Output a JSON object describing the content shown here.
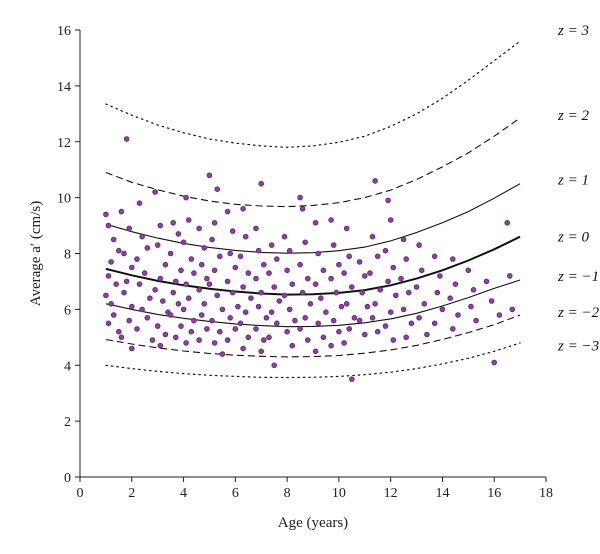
{
  "chart_data": {
    "type": "scatter",
    "title": "",
    "xlabel": "Age (years)",
    "ylabel": "Average a′ (cm/s)",
    "xlim": [
      0,
      18
    ],
    "ylim": [
      0,
      16
    ],
    "x_ticks": [
      "0",
      "2",
      "4",
      "6",
      "8",
      "10",
      "12",
      "14",
      "16",
      "18"
    ],
    "y_ticks": [
      "0",
      "2",
      "4",
      "6",
      "8",
      "10",
      "12",
      "14",
      "16"
    ],
    "grid": false,
    "point_color": "#5b2a6b",
    "point_fill": "#8e3fa3",
    "points": [
      [
        1.0,
        9.4
      ],
      [
        1.1,
        9.0
      ],
      [
        1.3,
        8.5
      ],
      [
        1.5,
        8.1
      ],
      [
        1.2,
        7.7
      ],
      [
        1.1,
        7.2
      ],
      [
        1.4,
        6.9
      ],
      [
        1.0,
        6.5
      ],
      [
        1.2,
        6.2
      ],
      [
        1.3,
        5.8
      ],
      [
        1.1,
        5.5
      ],
      [
        1.5,
        5.2
      ],
      [
        1.8,
        12.1
      ],
      [
        1.6,
        9.5
      ],
      [
        1.9,
        8.9
      ],
      [
        1.7,
        8.0
      ],
      [
        2.0,
        7.5
      ],
      [
        1.8,
        7.0
      ],
      [
        1.7,
        6.6
      ],
      [
        2.0,
        6.1
      ],
      [
        1.9,
        5.6
      ],
      [
        1.6,
        5.0
      ],
      [
        2.0,
        4.6
      ],
      [
        2.3,
        9.8
      ],
      [
        2.4,
        8.6
      ],
      [
        2.6,
        8.2
      ],
      [
        2.2,
        7.8
      ],
      [
        2.5,
        7.3
      ],
      [
        2.3,
        6.9
      ],
      [
        2.7,
        6.4
      ],
      [
        2.4,
        6.0
      ],
      [
        2.6,
        5.7
      ],
      [
        2.2,
        5.3
      ],
      [
        2.8,
        4.9
      ],
      [
        2.9,
        10.2
      ],
      [
        3.1,
        9.0
      ],
      [
        3.0,
        8.3
      ],
      [
        3.3,
        7.6
      ],
      [
        3.1,
        7.1
      ],
      [
        2.9,
        6.7
      ],
      [
        3.2,
        6.3
      ],
      [
        3.4,
        5.9
      ],
      [
        3.0,
        5.4
      ],
      [
        3.3,
        5.1
      ],
      [
        3.1,
        4.7
      ],
      [
        3.6,
        9.1
      ],
      [
        3.8,
        8.7
      ],
      [
        3.5,
        8.0
      ],
      [
        3.9,
        7.4
      ],
      [
        3.7,
        7.0
      ],
      [
        3.6,
        6.6
      ],
      [
        3.8,
        6.2
      ],
      [
        3.5,
        5.8
      ],
      [
        3.9,
        5.4
      ],
      [
        3.7,
        5.0
      ],
      [
        4.1,
        10.0
      ],
      [
        4.2,
        9.2
      ],
      [
        4.0,
        8.4
      ],
      [
        4.3,
        7.8
      ],
      [
        4.4,
        7.3
      ],
      [
        4.1,
        6.9
      ],
      [
        4.2,
        6.4
      ],
      [
        4.0,
        6.0
      ],
      [
        4.4,
        5.6
      ],
      [
        4.3,
        5.2
      ],
      [
        4.1,
        4.8
      ],
      [
        4.6,
        8.9
      ],
      [
        4.8,
        8.2
      ],
      [
        4.7,
        7.6
      ],
      [
        4.9,
        7.1
      ],
      [
        4.6,
        6.7
      ],
      [
        4.8,
        6.2
      ],
      [
        4.7,
        5.8
      ],
      [
        4.9,
        5.3
      ],
      [
        4.6,
        4.9
      ],
      [
        5.0,
        10.8
      ],
      [
        5.3,
        10.3
      ],
      [
        5.2,
        9.1
      ],
      [
        5.1,
        8.5
      ],
      [
        5.4,
        7.9
      ],
      [
        5.2,
        7.4
      ],
      [
        5.0,
        6.9
      ],
      [
        5.3,
        6.5
      ],
      [
        5.5,
        6.0
      ],
      [
        5.1,
        5.6
      ],
      [
        5.4,
        5.2
      ],
      [
        5.2,
        4.8
      ],
      [
        5.5,
        4.4
      ],
      [
        5.7,
        9.5
      ],
      [
        5.9,
        8.8
      ],
      [
        5.8,
        8.0
      ],
      [
        6.0,
        7.5
      ],
      [
        5.7,
        7.0
      ],
      [
        5.9,
        6.6
      ],
      [
        6.1,
        6.1
      ],
      [
        5.8,
        5.7
      ],
      [
        6.0,
        5.3
      ],
      [
        5.7,
        4.9
      ],
      [
        6.3,
        9.6
      ],
      [
        6.4,
        8.6
      ],
      [
        6.2,
        7.9
      ],
      [
        6.5,
        7.3
      ],
      [
        6.3,
        6.8
      ],
      [
        6.6,
        6.4
      ],
      [
        6.4,
        5.9
      ],
      [
        6.2,
        5.5
      ],
      [
        6.5,
        5.0
      ],
      [
        6.3,
        4.6
      ],
      [
        6.8,
        8.9
      ],
      [
        6.9,
        8.1
      ],
      [
        7.0,
        10.5
      ],
      [
        7.1,
        7.6
      ],
      [
        6.8,
        7.1
      ],
      [
        7.0,
        6.6
      ],
      [
        6.9,
        6.1
      ],
      [
        7.2,
        5.7
      ],
      [
        6.8,
        5.3
      ],
      [
        7.1,
        4.9
      ],
      [
        7.0,
        4.5
      ],
      [
        7.4,
        8.3
      ],
      [
        7.6,
        7.8
      ],
      [
        7.3,
        7.3
      ],
      [
        7.5,
        6.8
      ],
      [
        7.7,
        6.3
      ],
      [
        7.4,
        5.9
      ],
      [
        7.6,
        5.5
      ],
      [
        7.3,
        5.0
      ],
      [
        7.5,
        4.0
      ],
      [
        7.9,
        8.6
      ],
      [
        8.1,
        8.1
      ],
      [
        8.0,
        7.4
      ],
      [
        8.2,
        6.9
      ],
      [
        7.9,
        6.5
      ],
      [
        8.1,
        6.0
      ],
      [
        8.3,
        5.6
      ],
      [
        8.0,
        5.2
      ],
      [
        8.2,
        4.7
      ],
      [
        8.5,
        10.0
      ],
      [
        8.6,
        9.6
      ],
      [
        8.7,
        8.4
      ],
      [
        8.5,
        7.6
      ],
      [
        8.8,
        7.1
      ],
      [
        8.6,
        6.6
      ],
      [
        8.9,
        6.2
      ],
      [
        8.7,
        5.7
      ],
      [
        8.5,
        5.3
      ],
      [
        8.8,
        4.9
      ],
      [
        9.1,
        9.1
      ],
      [
        9.2,
        8.0
      ],
      [
        9.4,
        7.4
      ],
      [
        9.1,
        6.9
      ],
      [
        9.3,
        6.4
      ],
      [
        9.5,
        5.9
      ],
      [
        9.2,
        5.5
      ],
      [
        9.4,
        5.0
      ],
      [
        9.1,
        4.5
      ],
      [
        9.7,
        9.2
      ],
      [
        9.8,
        8.3
      ],
      [
        10.0,
        7.6
      ],
      [
        9.7,
        7.1
      ],
      [
        9.9,
        6.6
      ],
      [
        10.1,
        6.1
      ],
      [
        9.8,
        5.6
      ],
      [
        10.0,
        5.2
      ],
      [
        9.7,
        4.7
      ],
      [
        10.3,
        8.9
      ],
      [
        10.4,
        7.9
      ],
      [
        10.2,
        7.3
      ],
      [
        10.5,
        6.8
      ],
      [
        10.3,
        6.2
      ],
      [
        10.6,
        5.7
      ],
      [
        10.4,
        5.3
      ],
      [
        10.2,
        4.8
      ],
      [
        10.5,
        3.5
      ],
      [
        10.8,
        7.7
      ],
      [
        11.0,
        7.2
      ],
      [
        10.9,
        6.6
      ],
      [
        11.1,
        6.1
      ],
      [
        10.8,
        5.6
      ],
      [
        11.0,
        5.1
      ],
      [
        11.4,
        10.6
      ],
      [
        11.3,
        8.6
      ],
      [
        11.5,
        7.9
      ],
      [
        11.2,
        7.3
      ],
      [
        11.6,
        6.7
      ],
      [
        11.4,
        6.2
      ],
      [
        11.3,
        5.7
      ],
      [
        11.5,
        5.2
      ],
      [
        11.9,
        9.9
      ],
      [
        12.0,
        9.2
      ],
      [
        11.8,
        8.1
      ],
      [
        12.1,
        7.5
      ],
      [
        11.9,
        7.0
      ],
      [
        12.2,
        6.5
      ],
      [
        12.0,
        5.9
      ],
      [
        11.8,
        5.4
      ],
      [
        12.1,
        4.9
      ],
      [
        12.5,
        8.5
      ],
      [
        12.6,
        7.8
      ],
      [
        12.4,
        7.1
      ],
      [
        12.7,
        6.6
      ],
      [
        12.5,
        6.0
      ],
      [
        12.8,
        5.5
      ],
      [
        12.6,
        5.0
      ],
      [
        13.1,
        8.3
      ],
      [
        13.2,
        7.4
      ],
      [
        13.0,
        6.8
      ],
      [
        13.3,
        6.2
      ],
      [
        13.1,
        5.7
      ],
      [
        13.4,
        5.1
      ],
      [
        13.7,
        7.9
      ],
      [
        13.9,
        7.2
      ],
      [
        13.8,
        6.6
      ],
      [
        14.0,
        6.0
      ],
      [
        13.7,
        5.5
      ],
      [
        14.4,
        7.8
      ],
      [
        14.5,
        6.9
      ],
      [
        14.3,
        6.4
      ],
      [
        14.6,
        5.8
      ],
      [
        14.4,
        5.3
      ],
      [
        15.0,
        7.4
      ],
      [
        15.2,
        6.7
      ],
      [
        15.1,
        6.1
      ],
      [
        15.3,
        5.6
      ],
      [
        15.7,
        7.0
      ],
      [
        15.9,
        6.3
      ],
      [
        16.0,
        4.1
      ],
      [
        16.2,
        5.8
      ],
      [
        16.5,
        9.1
      ],
      [
        16.6,
        7.2
      ],
      [
        16.7,
        6.0
      ]
    ],
    "curves": [
      {
        "name": "z = 3",
        "style": "dotted",
        "x": [
          1,
          2,
          3,
          4,
          5,
          6,
          7,
          8,
          9,
          10,
          11,
          12,
          13,
          14,
          15,
          16,
          17
        ],
        "y": [
          13.35,
          12.95,
          12.6,
          12.32,
          12.1,
          11.95,
          11.85,
          11.8,
          11.85,
          11.98,
          12.2,
          12.55,
          13.0,
          13.55,
          14.2,
          14.9,
          15.6
        ]
      },
      {
        "name": "z = 2",
        "style": "dashed",
        "x": [
          1,
          2,
          3,
          4,
          5,
          6,
          7,
          8,
          9,
          10,
          11,
          12,
          13,
          14,
          15,
          16,
          17
        ],
        "y": [
          10.9,
          10.55,
          10.28,
          10.05,
          9.88,
          9.76,
          9.7,
          9.68,
          9.72,
          9.82,
          10.0,
          10.27,
          10.65,
          11.1,
          11.6,
          12.2,
          12.85
        ]
      },
      {
        "name": "z = 1",
        "style": "solid",
        "x": [
          1,
          2,
          3,
          4,
          5,
          6,
          7,
          8,
          9,
          10,
          11,
          12,
          13,
          14,
          15,
          16,
          17
        ],
        "y": [
          9.05,
          8.78,
          8.55,
          8.36,
          8.22,
          8.11,
          8.04,
          8.01,
          8.03,
          8.1,
          8.23,
          8.45,
          8.75,
          9.1,
          9.5,
          9.98,
          10.5
        ]
      },
      {
        "name": "z = 0",
        "style": "bold",
        "x": [
          1,
          2,
          3,
          4,
          5,
          6,
          7,
          8,
          9,
          10,
          11,
          12,
          13,
          14,
          15,
          16,
          17
        ],
        "y": [
          7.45,
          7.22,
          7.02,
          6.86,
          6.74,
          6.64,
          6.57,
          6.53,
          6.54,
          6.59,
          6.69,
          6.86,
          7.1,
          7.4,
          7.75,
          8.15,
          8.6
        ]
      },
      {
        "name": "z = −1",
        "style": "solid",
        "x": [
          1,
          2,
          3,
          4,
          5,
          6,
          7,
          8,
          9,
          10,
          11,
          12,
          13,
          14,
          15,
          16,
          17
        ],
        "y": [
          6.2,
          6.0,
          5.82,
          5.68,
          5.57,
          5.48,
          5.42,
          5.38,
          5.39,
          5.43,
          5.52,
          5.66,
          5.86,
          6.12,
          6.42,
          6.75,
          7.05
        ]
      },
      {
        "name": "z = −2",
        "style": "dashed",
        "x": [
          1,
          2,
          3,
          4,
          5,
          6,
          7,
          8,
          9,
          10,
          11,
          12,
          13,
          14,
          15,
          16,
          17
        ],
        "y": [
          4.92,
          4.76,
          4.62,
          4.51,
          4.42,
          4.36,
          4.32,
          4.3,
          4.31,
          4.35,
          4.43,
          4.55,
          4.71,
          4.92,
          5.17,
          5.45,
          5.8
        ]
      },
      {
        "name": "z = −3",
        "style": "dotted",
        "x": [
          1,
          2,
          3,
          4,
          5,
          6,
          7,
          8,
          9,
          10,
          11,
          12,
          13,
          14,
          15,
          16,
          17
        ],
        "y": [
          4.0,
          3.88,
          3.78,
          3.7,
          3.64,
          3.6,
          3.57,
          3.56,
          3.57,
          3.6,
          3.66,
          3.75,
          3.88,
          4.05,
          4.25,
          4.5,
          4.8
        ]
      }
    ],
    "curve_labels": [
      {
        "text": "z = 3",
        "y": 16.0
      },
      {
        "text": "z = 2",
        "y": 12.95
      },
      {
        "text": "z = 1",
        "y": 10.65
      },
      {
        "text": "z = 0",
        "y": 8.6
      },
      {
        "text": "z = −1",
        "y": 7.2
      },
      {
        "text": "z = −2",
        "y": 5.9
      },
      {
        "text": "z = −3",
        "y": 4.7
      }
    ]
  }
}
